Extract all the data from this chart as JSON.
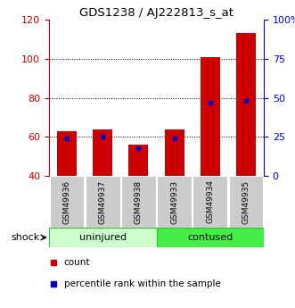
{
  "title": "GDS1238 / AJ222813_s_at",
  "samples": [
    "GSM49936",
    "GSM49937",
    "GSM49938",
    "GSM49933",
    "GSM49934",
    "GSM49935"
  ],
  "groups": [
    "uninjured",
    "uninjured",
    "uninjured",
    "contused",
    "contused",
    "contused"
  ],
  "group_labels": [
    "uninjured",
    "contused"
  ],
  "uninjured_color": "#ccffcc",
  "contused_color": "#44ee44",
  "count_values": [
    63,
    64,
    56,
    64,
    101,
    113
  ],
  "percentile_values": [
    24,
    25,
    18,
    24,
    47,
    48
  ],
  "ylim_left": [
    40,
    120
  ],
  "ylim_right": [
    0,
    100
  ],
  "yticks_left": [
    40,
    60,
    80,
    100,
    120
  ],
  "yticks_right": [
    0,
    25,
    50,
    75,
    100
  ],
  "ytick_labels_right": [
    "0",
    "25",
    "50",
    "75",
    "100%"
  ],
  "bar_bottom": 40,
  "count_color": "#cc0000",
  "percentile_color": "#0000cc",
  "bar_width": 0.55,
  "shock_label": "shock",
  "legend_count": "count",
  "legend_percentile": "percentile rank within the sample",
  "grid_ticks": [
    60,
    80,
    100
  ],
  "sample_box_color": "#cccccc",
  "figsize": [
    3.31,
    3.45
  ],
  "dpi": 100
}
